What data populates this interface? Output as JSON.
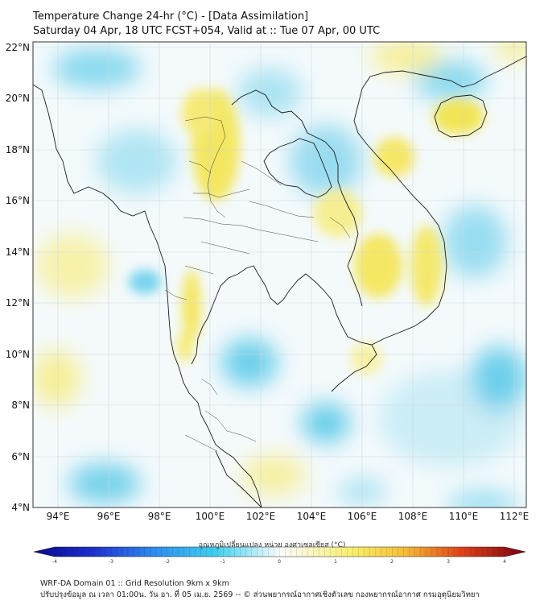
{
  "title": {
    "line1": "Temperature Change 24-hr (°C) - [Data Assimilation]",
    "line2": "Saturday 04 Apr, 18 UTC FCST+054, Valid at :: Tue 07 Apr, 00 UTC"
  },
  "map": {
    "lat_labels": [
      "22°N",
      "20°N",
      "18°N",
      "16°N",
      "14°N",
      "12°N",
      "10°N",
      "8°N",
      "6°N",
      "4°N"
    ],
    "lon_labels": [
      "94°E",
      "96°E",
      "98°E",
      "100°E",
      "102°E",
      "104°E",
      "106°E",
      "108°E",
      "110°E",
      "112°E"
    ],
    "lat_values": [
      22,
      20,
      18,
      16,
      14,
      12,
      10,
      8,
      6,
      4
    ],
    "lon_values": [
      94,
      96,
      98,
      100,
      102,
      104,
      106,
      108,
      110,
      112
    ],
    "extent": {
      "lon_min": 93,
      "lon_max": 112.5,
      "lat_min": 4,
      "lat_max": 22.2
    }
  },
  "colorbar": {
    "title": "อุณหภูมิเปลี่ยนแปลง หน่วย องศาเซลเซียส (°C)",
    "tick_labels": [
      "-4",
      "-3",
      "-2",
      "-1",
      "0",
      "1",
      "2",
      "3",
      "4"
    ],
    "tick_values": [
      -4,
      -3,
      -2,
      -1,
      0,
      1,
      2,
      3,
      4
    ],
    "range": [
      -4,
      4
    ]
  },
  "footer": {
    "line1": "WRF-DA Domain 01 :: Grid Resolution 9km x 9km",
    "line2": "ปรับปรุงข้อมูล ณ เวลา 01:00น. วัน อา. ที่ 05 เม.ย. 2569 -- © ส่วนพยากรณ์อากาศเชิงตัวเลข กองพยากรณ์อากาศ กรมอุตุนิยมวิทยา"
  },
  "colors": {
    "cold_strong": "#0a0a8c",
    "cool": "#3fc8ea",
    "neutral": "#f6fbfd",
    "warm": "#f5ec6a",
    "hot_strong": "#7a0010",
    "border": "#1a1a1a",
    "grid": "#cfd6da"
  }
}
